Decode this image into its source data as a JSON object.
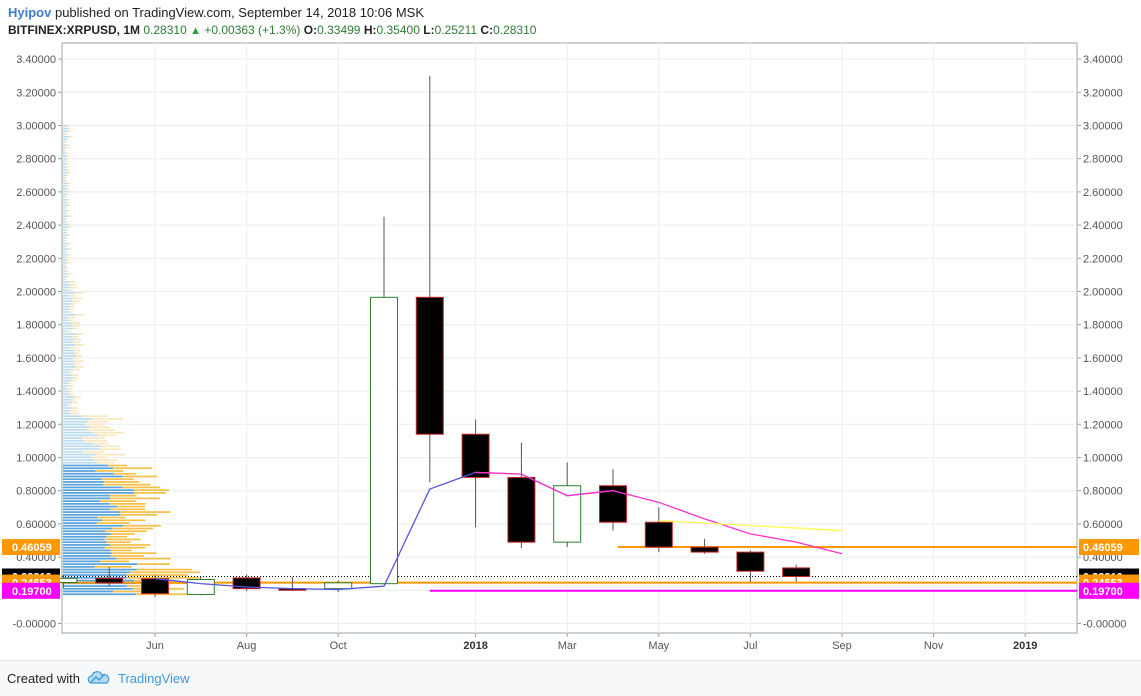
{
  "header": {
    "author": "Hyipov",
    "published_text": "published on TradingView.com, September 14, 2018 10:06 MSK",
    "symbol": "BITFINEX:XRPUSD, 1M",
    "last": "0.28310",
    "change": "+0.00363 (+1.3%)",
    "open_label": "O:",
    "open": "0.33499",
    "high_label": "H:",
    "high": "0.35400",
    "low_label": "L:",
    "low": "0.25211",
    "close_label": "C:",
    "close": "0.28310"
  },
  "footer": {
    "created_with": "Created with",
    "brand": "TradingView"
  },
  "chart_data": {
    "type": "candlestick",
    "y_ticks": [
      "-0.00000",
      "0.20000",
      "0.40000",
      "0.60000",
      "0.80000",
      "1.00000",
      "1.20000",
      "1.40000",
      "1.60000",
      "1.80000",
      "2.00000",
      "2.20000",
      "2.40000",
      "2.60000",
      "2.80000",
      "3.00000",
      "3.20000",
      "3.40000"
    ],
    "y_tick_values": [
      0,
      0.2,
      0.4,
      0.6,
      0.8,
      1.0,
      1.2,
      1.4,
      1.6,
      1.8,
      2.0,
      2.2,
      2.4,
      2.6,
      2.8,
      3.0,
      3.2,
      3.4
    ],
    "ylim": [
      -0.06,
      3.5
    ],
    "x_labels": [
      {
        "label": "Jun",
        "idx": 2,
        "bold": false
      },
      {
        "label": "Aug",
        "idx": 4,
        "bold": false
      },
      {
        "label": "Oct",
        "idx": 6,
        "bold": false
      },
      {
        "label": "2018",
        "idx": 9,
        "bold": true
      },
      {
        "label": "Mar",
        "idx": 11,
        "bold": false
      },
      {
        "label": "May",
        "idx": 13,
        "bold": false
      },
      {
        "label": "Jul",
        "idx": 15,
        "bold": false
      },
      {
        "label": "Sep",
        "idx": 17,
        "bold": false
      },
      {
        "label": "Nov",
        "idx": 19,
        "bold": false
      },
      {
        "label": "2019",
        "idx": 21,
        "bold": true
      }
    ],
    "x_vlines": [
      2,
      4,
      6,
      9,
      11,
      13,
      15,
      17,
      19,
      21
    ],
    "candles": [
      {
        "date": "2017-04",
        "o": 0.247,
        "h": 0.295,
        "l": 0.215,
        "c": 0.272
      },
      {
        "date": "2017-05",
        "o": 0.272,
        "h": 0.34,
        "l": 0.225,
        "c": 0.245
      },
      {
        "date": "2017-06",
        "o": 0.27,
        "h": 0.29,
        "l": 0.16,
        "c": 0.18
      },
      {
        "date": "2017-07",
        "o": 0.175,
        "h": 0.28,
        "l": 0.17,
        "c": 0.265
      },
      {
        "date": "2017-08",
        "o": 0.275,
        "h": 0.295,
        "l": 0.195,
        "c": 0.21
      },
      {
        "date": "2017-09",
        "o": 0.21,
        "h": 0.28,
        "l": 0.195,
        "c": 0.2
      },
      {
        "date": "2017-10",
        "o": 0.21,
        "h": 0.26,
        "l": 0.19,
        "c": 0.245
      },
      {
        "date": "2017-11",
        "o": 0.24,
        "h": 2.45,
        "l": 0.235,
        "c": 1.965
      },
      {
        "date": "2017-12",
        "o": 1.965,
        "h": 3.3,
        "l": 0.85,
        "c": 1.14
      },
      {
        "date": "2018-01",
        "o": 1.14,
        "h": 1.23,
        "l": 0.58,
        "c": 0.88
      },
      {
        "date": "2018-02",
        "o": 0.88,
        "h": 1.09,
        "l": 0.455,
        "c": 0.49
      },
      {
        "date": "2018-03",
        "o": 0.49,
        "h": 0.97,
        "l": 0.46,
        "c": 0.83
      },
      {
        "date": "2018-04",
        "o": 0.83,
        "h": 0.93,
        "l": 0.56,
        "c": 0.61
      },
      {
        "date": "2018-05",
        "o": 0.61,
        "h": 0.7,
        "l": 0.43,
        "c": 0.46
      },
      {
        "date": "2018-06",
        "o": 0.46,
        "h": 0.51,
        "l": 0.42,
        "c": 0.43
      },
      {
        "date": "2018-07",
        "o": 0.43,
        "h": 0.44,
        "l": 0.25,
        "c": 0.315
      },
      {
        "date": "2018-08",
        "o": 0.335,
        "h": 0.354,
        "l": 0.252,
        "c": 0.283
      }
    ],
    "blue_line": [
      [
        2,
        0.27
      ],
      [
        3,
        0.24
      ],
      [
        4,
        0.22
      ],
      [
        5,
        0.21
      ],
      [
        6,
        0.205
      ],
      [
        7,
        0.225
      ],
      [
        8,
        0.81
      ],
      [
        9,
        0.91
      ],
      [
        10,
        0.9
      ],
      [
        11,
        0.77
      ],
      [
        12,
        0.8
      ]
    ],
    "magenta_line": [
      [
        9,
        0.91
      ],
      [
        10,
        0.9
      ],
      [
        11,
        0.77
      ],
      [
        12,
        0.8
      ],
      [
        13,
        0.73
      ],
      [
        14,
        0.63
      ],
      [
        15,
        0.54
      ],
      [
        16,
        0.49
      ],
      [
        17,
        0.42
      ]
    ],
    "yellow_line": [
      [
        13,
        0.62
      ],
      [
        17,
        0.56
      ]
    ],
    "levels": [
      {
        "value": 0.46059,
        "label": "0.46059",
        "color": "#ff9800",
        "from_idx": 12.1
      },
      {
        "value": 0.2831,
        "label": "0.28310",
        "color": "#000000",
        "from_idx": 0,
        "dotted": true
      },
      {
        "value": 0.24653,
        "label": "0.24653",
        "color": "#ff9800",
        "from_idx": 0
      },
      {
        "value": 0.197,
        "label": "0.19700",
        "color": "#ff00ff",
        "from_idx": 8
      }
    ],
    "volume_profile": {
      "up_color": "#f5c04a",
      "down_color": "#5aa3dc",
      "up_color_light": "#f9e7bf",
      "down_color_light": "#bcdcf1"
    },
    "colors": {
      "blue_line": "#5555dd",
      "magenta_line": "#ff33cc",
      "yellow_line": "#ffff55",
      "grid": "#e8eef2",
      "bull_border": "#2e7d32",
      "bear_border": "#c62828"
    }
  }
}
